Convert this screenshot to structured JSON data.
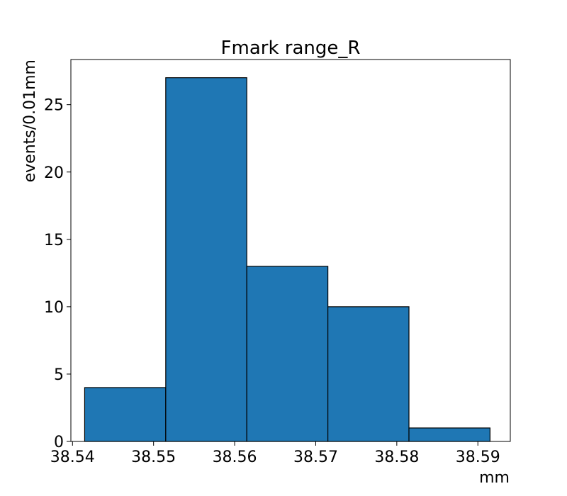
{
  "chart_data": {
    "type": "bar",
    "title": "Fmark range_R",
    "xlabel": "mm",
    "ylabel": "events/0.01mm",
    "bin_edges": [
      38.5415,
      38.5515,
      38.5615,
      38.5715,
      38.5815,
      38.5915
    ],
    "values": [
      4,
      27,
      13,
      10,
      1
    ],
    "xlim": [
      38.5398,
      38.594
    ],
    "ylim": [
      0,
      28.35
    ],
    "x_ticks": [
      38.54,
      38.55,
      38.56,
      38.57,
      38.58,
      38.59
    ],
    "x_tick_labels": [
      "38.54",
      "38.55",
      "38.56",
      "38.57",
      "38.58",
      "38.59"
    ],
    "y_ticks": [
      0,
      5,
      10,
      15,
      20,
      25
    ],
    "y_tick_labels": [
      "0",
      "5",
      "10",
      "15",
      "20",
      "25"
    ],
    "bar_color": "#1f77b4",
    "edge_color": "#000000",
    "grid": false,
    "legend": "none"
  }
}
